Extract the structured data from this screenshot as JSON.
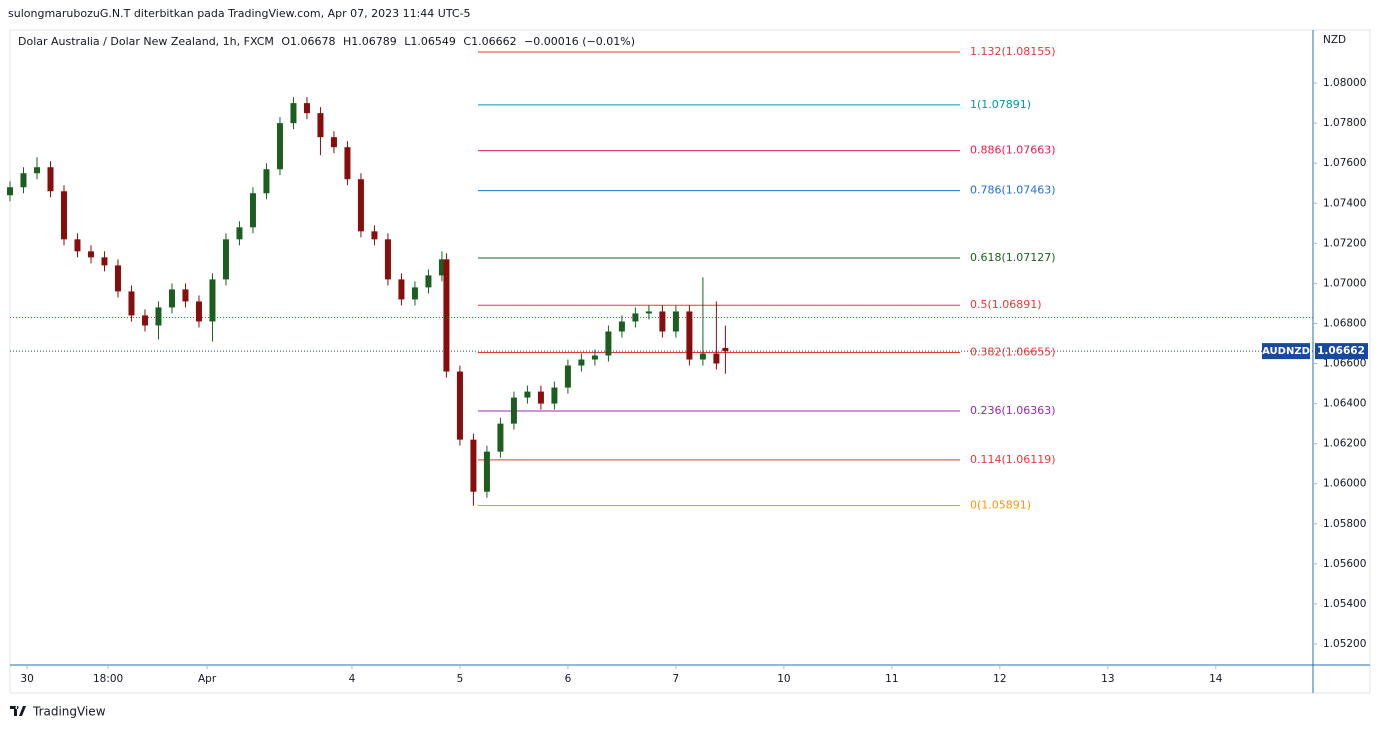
{
  "header": "sulongmarubozuG.N.T diterbitkan pada TradingView.com, Apr 07, 2023 11:44 UTC-5",
  "footer": "TradingView",
  "chart_data": {
    "type": "candlestick",
    "title": "Dolar Australia / Dolar New Zealand, 1h, FXCM",
    "ohlc_labels": [
      "O1.06678",
      "H1.06789",
      "L1.06549",
      "C1.06662",
      "−0.00016 (−0.01%)"
    ],
    "y_unit": "NZD",
    "up_color": "#1b5e20",
    "down_color": "#880e0e",
    "x": [
      0,
      3,
      6,
      9,
      12,
      15,
      18,
      21,
      24,
      27,
      30,
      33,
      36,
      39,
      42,
      45,
      48,
      51,
      54,
      57,
      60,
      63,
      66,
      69,
      72,
      75,
      78,
      81,
      84,
      87,
      90,
      93,
      96,
      97,
      100,
      103,
      106,
      109,
      112,
      115,
      118,
      121,
      124,
      127,
      130,
      133,
      136,
      139,
      142,
      145,
      148,
      151,
      154,
      157,
      159
    ],
    "open": [
      1.0744,
      1.0748,
      1.0755,
      1.0758,
      1.0746,
      1.0722,
      1.0716,
      1.0713,
      1.0709,
      1.0696,
      1.0684,
      1.0679,
      1.0688,
      1.0697,
      1.0691,
      1.0681,
      1.0702,
      1.0722,
      1.0728,
      1.0745,
      1.0757,
      1.078,
      1.079,
      1.0785,
      1.0773,
      1.0768,
      1.0752,
      1.0726,
      1.0722,
      1.0702,
      1.0692,
      1.0698,
      1.0704,
      1.0712,
      1.0656,
      1.0622,
      1.0596,
      1.0616,
      1.063,
      1.0643,
      1.0646,
      1.064,
      1.0648,
      1.0659,
      1.0662,
      1.0664,
      1.0676,
      1.0681,
      1.0685,
      1.0686,
      1.0676,
      1.0686,
      1.0662,
      1.0665,
      1.06678
    ],
    "high": [
      1.0751,
      1.0758,
      1.0763,
      1.0761,
      1.0749,
      1.0725,
      1.0719,
      1.0716,
      1.0712,
      1.0699,
      1.0687,
      1.0691,
      1.07,
      1.07,
      1.0694,
      1.0705,
      1.0725,
      1.0731,
      1.0748,
      1.076,
      1.0783,
      1.0793,
      1.0793,
      1.0788,
      1.0776,
      1.0771,
      1.0755,
      1.0729,
      1.0725,
      1.0705,
      1.0701,
      1.0707,
      1.0716,
      1.0715,
      1.0659,
      1.0625,
      1.0619,
      1.0633,
      1.0646,
      1.0649,
      1.0649,
      1.0651,
      1.0662,
      1.0665,
      1.0667,
      1.0679,
      1.0684,
      1.0688,
      1.0689,
      1.0689,
      1.0689,
      1.0689,
      1.0703,
      1.0691,
      1.06789
    ],
    "low": [
      1.0741,
      1.0745,
      1.0752,
      1.0743,
      1.0719,
      1.0713,
      1.071,
      1.0706,
      1.0693,
      1.0681,
      1.0676,
      1.0672,
      1.0685,
      1.0688,
      1.0678,
      1.0671,
      1.0699,
      1.0719,
      1.0725,
      1.0742,
      1.0754,
      1.0777,
      1.0782,
      1.0764,
      1.0765,
      1.0749,
      1.0723,
      1.0719,
      1.0699,
      1.0689,
      1.0689,
      1.0695,
      1.0701,
      1.0653,
      1.0619,
      1.0589,
      1.0593,
      1.0613,
      1.0627,
      1.064,
      1.0637,
      1.0637,
      1.0645,
      1.0656,
      1.0659,
      1.0661,
      1.0673,
      1.0678,
      1.0682,
      1.0673,
      1.0673,
      1.0659,
      1.0659,
      1.0657,
      1.06549
    ],
    "close": [
      1.0748,
      1.0755,
      1.0758,
      1.0746,
      1.0722,
      1.0716,
      1.0713,
      1.0709,
      1.0696,
      1.0684,
      1.0679,
      1.0688,
      1.0697,
      1.0691,
      1.0681,
      1.0702,
      1.0722,
      1.0728,
      1.0745,
      1.0757,
      1.078,
      1.079,
      1.0785,
      1.0773,
      1.0768,
      1.0752,
      1.0726,
      1.0722,
      1.0702,
      1.0692,
      1.0698,
      1.0704,
      1.0712,
      1.0656,
      1.0622,
      1.0596,
      1.0616,
      1.063,
      1.0643,
      1.0646,
      1.064,
      1.0648,
      1.0659,
      1.0662,
      1.0664,
      1.0676,
      1.0681,
      1.0685,
      1.0686,
      1.0676,
      1.0686,
      1.0662,
      1.0665,
      1.066,
      1.06662
    ],
    "xlim": [
      0,
      289.6
    ],
    "xticks": [
      {
        "value": 3.8,
        "label": "30"
      },
      {
        "value": 21.8,
        "label": "18:00"
      },
      {
        "value": 43.8,
        "label": "Apr"
      },
      {
        "value": 76,
        "label": "4"
      },
      {
        "value": 100,
        "label": "5"
      },
      {
        "value": 124,
        "label": "6"
      },
      {
        "value": 148,
        "label": "7"
      },
      {
        "value": 172,
        "label": "10"
      },
      {
        "value": 196,
        "label": "11"
      },
      {
        "value": 220,
        "label": "12"
      },
      {
        "value": 244,
        "label": "13"
      },
      {
        "value": 268,
        "label": "14"
      }
    ],
    "ylim": [
      1.05095,
      1.08265
    ],
    "yticks": [
      {
        "value": 1.052,
        "label": "1.05200"
      },
      {
        "value": 1.054,
        "label": "1.05400"
      },
      {
        "value": 1.056,
        "label": "1.05600"
      },
      {
        "value": 1.058,
        "label": "1.05800"
      },
      {
        "value": 1.06,
        "label": "1.06000"
      },
      {
        "value": 1.062,
        "label": "1.06200"
      },
      {
        "value": 1.064,
        "label": "1.06400"
      },
      {
        "value": 1.066,
        "label": "1.06600"
      },
      {
        "value": 1.068,
        "label": "1.06800"
      },
      {
        "value": 1.07,
        "label": "1.07000"
      },
      {
        "value": 1.072,
        "label": "1.07200"
      },
      {
        "value": 1.074,
        "label": "1.07400"
      },
      {
        "value": 1.076,
        "label": "1.07600"
      },
      {
        "value": 1.078,
        "label": "1.07800"
      },
      {
        "value": 1.08,
        "label": "1.08000"
      }
    ],
    "fib_levels": [
      {
        "price": 1.08155,
        "label": "1.132(1.08155)",
        "color": "#e53935"
      },
      {
        "price": 1.07891,
        "label": "1(1.07891)",
        "color": "#0097a7"
      },
      {
        "price": 1.07663,
        "label": "0.886(1.07663)",
        "color": "#e91e4d"
      },
      {
        "price": 1.07463,
        "label": "0.786(1.07463)",
        "color": "#1e6fd9"
      },
      {
        "price": 1.07127,
        "label": "0.618(1.07127)",
        "color": "#1b5e20"
      },
      {
        "price": 1.06891,
        "label": "0.5(1.06891)",
        "color": "#e53935"
      },
      {
        "price": 1.06655,
        "label": "0.382(1.06655)",
        "color": "#e53935"
      },
      {
        "price": 1.06363,
        "label": "0.236(1.06363)",
        "color": "#9c27b0"
      },
      {
        "price": 1.06119,
        "label": "0.114(1.06119)",
        "color": "#e53935"
      },
      {
        "price": 1.05891,
        "label": "0(1.05891)",
        "color": "#ff9800"
      }
    ],
    "dotted_line": {
      "price": 1.0683,
      "color": "#e53935"
    },
    "price_tag": {
      "symbol": "AUDNZD",
      "value": 1.06662,
      "color": "#1848a0"
    }
  }
}
